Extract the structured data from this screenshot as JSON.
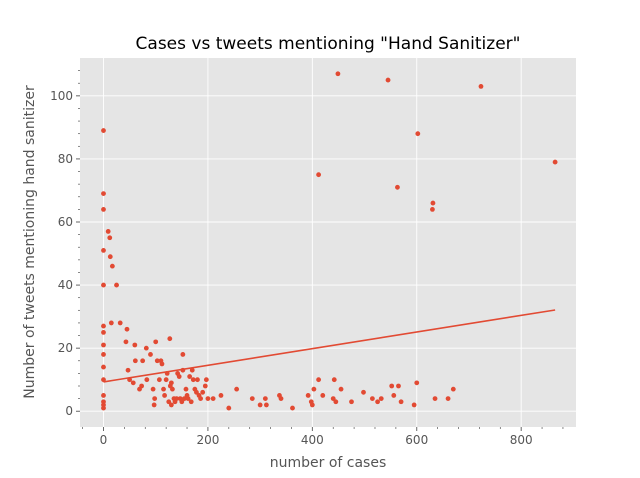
{
  "chart_data": {
    "type": "scatter",
    "title": "Cases vs tweets mentioning \"Hand Sanitizer\"",
    "xlabel": "number of cases",
    "ylabel": "Number of tweets mentioning hand sanitizer",
    "xlim": [
      -45,
      905
    ],
    "ylim": [
      -5,
      112
    ],
    "xticks": [
      0,
      200,
      400,
      600,
      800
    ],
    "yticks": [
      0,
      20,
      40,
      60,
      80,
      100
    ],
    "xtick_labels": [
      "0",
      "200",
      "400",
      "600",
      "800"
    ],
    "ytick_labels": [
      "0",
      "20",
      "40",
      "60",
      "80",
      "100"
    ],
    "grid": true,
    "colors": {
      "background": "#e5e5e5",
      "grid": "#ffffff",
      "marker": "#e24a33",
      "line": "#e24a33"
    },
    "series": [
      {
        "kind": "points",
        "points": [
          [
            0,
            89
          ],
          [
            0,
            69
          ],
          [
            0,
            64
          ],
          [
            0,
            51
          ],
          [
            0,
            40
          ],
          [
            0,
            27
          ],
          [
            0,
            25
          ],
          [
            0,
            21
          ],
          [
            0,
            18
          ],
          [
            0,
            14
          ],
          [
            0,
            10
          ],
          [
            0,
            5
          ],
          [
            0,
            3
          ],
          [
            0,
            2
          ],
          [
            0,
            1
          ],
          [
            9,
            57
          ],
          [
            12,
            55
          ],
          [
            13,
            49
          ],
          [
            15,
            28
          ],
          [
            17,
            46
          ],
          [
            25,
            40
          ],
          [
            32,
            28
          ],
          [
            43,
            22
          ],
          [
            45,
            26
          ],
          [
            47,
            13
          ],
          [
            50,
            10
          ],
          [
            57,
            9
          ],
          [
            60,
            21
          ],
          [
            61,
            16
          ],
          [
            69,
            7
          ],
          [
            73,
            8
          ],
          [
            75,
            16
          ],
          [
            82,
            20
          ],
          [
            83,
            10
          ],
          [
            90,
            18
          ],
          [
            95,
            7
          ],
          [
            97,
            2
          ],
          [
            98,
            4
          ],
          [
            100,
            22
          ],
          [
            103,
            16
          ],
          [
            107,
            10
          ],
          [
            110,
            16
          ],
          [
            112,
            15
          ],
          [
            115,
            7
          ],
          [
            117,
            5
          ],
          [
            120,
            10
          ],
          [
            122,
            12
          ],
          [
            125,
            3
          ],
          [
            127,
            23
          ],
          [
            128,
            8
          ],
          [
            130,
            9
          ],
          [
            130,
            2
          ],
          [
            132,
            7
          ],
          [
            135,
            4
          ],
          [
            137,
            3
          ],
          [
            140,
            4
          ],
          [
            142,
            12
          ],
          [
            145,
            11
          ],
          [
            147,
            4
          ],
          [
            150,
            3
          ],
          [
            152,
            13
          ],
          [
            152,
            18
          ],
          [
            155,
            4
          ],
          [
            158,
            7
          ],
          [
            160,
            5
          ],
          [
            162,
            4
          ],
          [
            165,
            11
          ],
          [
            168,
            3
          ],
          [
            170,
            13
          ],
          [
            172,
            10
          ],
          [
            175,
            7
          ],
          [
            178,
            6
          ],
          [
            180,
            10
          ],
          [
            183,
            5
          ],
          [
            186,
            4
          ],
          [
            190,
            6
          ],
          [
            195,
            8
          ],
          [
            197,
            10
          ],
          [
            200,
            4
          ],
          [
            210,
            4
          ],
          [
            225,
            5
          ],
          [
            240,
            1
          ],
          [
            255,
            7
          ],
          [
            285,
            4
          ],
          [
            300,
            2
          ],
          [
            310,
            4
          ],
          [
            312,
            2
          ],
          [
            337,
            5
          ],
          [
            340,
            4
          ],
          [
            362,
            1
          ],
          [
            392,
            5
          ],
          [
            398,
            3
          ],
          [
            400,
            2
          ],
          [
            403,
            7
          ],
          [
            412,
            10
          ],
          [
            412,
            75
          ],
          [
            420,
            5
          ],
          [
            440,
            4
          ],
          [
            442,
            10
          ],
          [
            445,
            3
          ],
          [
            449,
            107
          ],
          [
            455,
            7
          ],
          [
            475,
            3
          ],
          [
            498,
            6
          ],
          [
            515,
            4
          ],
          [
            525,
            3
          ],
          [
            532,
            4
          ],
          [
            545,
            105
          ],
          [
            552,
            8
          ],
          [
            556,
            5
          ],
          [
            563,
            71
          ],
          [
            565,
            8
          ],
          [
            570,
            3
          ],
          [
            595,
            2
          ],
          [
            600,
            9
          ],
          [
            602,
            88
          ],
          [
            630,
            64
          ],
          [
            631,
            66
          ],
          [
            635,
            4
          ],
          [
            660,
            4
          ],
          [
            670,
            7
          ],
          [
            723,
            103
          ],
          [
            865,
            79
          ]
        ]
      },
      {
        "kind": "trendline",
        "x": [
          0,
          865
        ],
        "y": [
          9.3,
          32.1
        ]
      }
    ]
  }
}
